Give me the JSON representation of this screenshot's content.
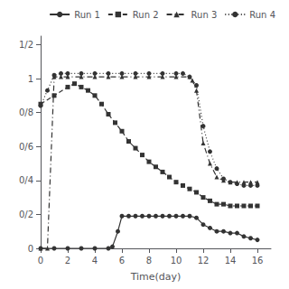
{
  "chart_data": {
    "type": "line",
    "xlabel": "Time(day)",
    "xlim": [
      0,
      17
    ],
    "ylim": [
      0,
      1.25
    ],
    "xticks": [
      0,
      2,
      4,
      6,
      8,
      10,
      12,
      14,
      16
    ],
    "yticks": [
      0,
      {
        "value": 0.2,
        "label": "0/2"
      },
      {
        "value": 0.4,
        "label": "0/4"
      },
      {
        "value": 0.6,
        "label": "0/6"
      },
      {
        "value": 0.8,
        "label": "0/8"
      },
      1,
      {
        "value": 1.2,
        "label": "1/2"
      }
    ],
    "color": "#333333",
    "grid": false,
    "legend": "upper right",
    "series": [
      {
        "name": "Run 1",
        "marker": "circle",
        "line_style": "solid",
        "x": [
          0,
          1,
          2,
          3,
          4,
          5,
          5.3,
          5.7,
          6.0,
          6.5,
          7,
          7.5,
          8,
          8.5,
          9,
          9.5,
          10,
          10.5,
          11,
          11.5,
          12,
          12.5,
          13,
          13.5,
          14,
          14.5,
          15,
          15.5,
          16
        ],
        "values": [
          0.0,
          0.0,
          0.0,
          0.0,
          0.0,
          0.0,
          0.01,
          0.1,
          0.19,
          0.19,
          0.19,
          0.19,
          0.19,
          0.19,
          0.19,
          0.19,
          0.19,
          0.19,
          0.19,
          0.18,
          0.14,
          0.12,
          0.1,
          0.1,
          0.09,
          0.09,
          0.07,
          0.06,
          0.05
        ]
      },
      {
        "name": "Run 2",
        "marker": "square",
        "line_style": "dashed",
        "x": [
          0,
          1,
          2,
          2.5,
          3,
          3.5,
          4,
          4.5,
          5,
          5.5,
          6,
          6.5,
          7,
          7.5,
          8,
          8.5,
          9,
          9.5,
          10,
          10.5,
          11,
          11.5,
          12,
          12.5,
          13,
          13.5,
          14,
          14.5,
          15,
          15.5,
          16
        ],
        "values": [
          0.85,
          0.9,
          0.95,
          0.97,
          0.95,
          0.93,
          0.9,
          0.85,
          0.79,
          0.74,
          0.69,
          0.63,
          0.59,
          0.55,
          0.51,
          0.48,
          0.45,
          0.42,
          0.39,
          0.37,
          0.35,
          0.33,
          0.3,
          0.28,
          0.26,
          0.26,
          0.25,
          0.25,
          0.25,
          0.25,
          0.25
        ]
      },
      {
        "name": "Run 3",
        "marker": "triangle",
        "line_style": "dashdot",
        "x": [
          0,
          0.5,
          1.0,
          1.5,
          2,
          3,
          4,
          5,
          6,
          7,
          8,
          9,
          10,
          11,
          11.2,
          11.5,
          12,
          12.5,
          13,
          13.5,
          14,
          14.5,
          15,
          15.5,
          16
        ],
        "values": [
          0.0,
          0.0,
          1.01,
          1.01,
          1.01,
          1.01,
          1.01,
          1.01,
          1.01,
          1.01,
          1.01,
          1.01,
          1.01,
          1.01,
          0.99,
          0.93,
          0.62,
          0.5,
          0.42,
          0.4,
          0.39,
          0.39,
          0.39,
          0.39,
          0.39
        ]
      },
      {
        "name": "Run 4",
        "marker": "circle",
        "line_style": "dotted",
        "x": [
          0,
          0.5,
          1.0,
          1.5,
          2,
          3,
          4,
          5,
          6,
          7,
          8,
          9,
          10,
          10.5,
          11,
          11.5,
          12,
          12.5,
          13,
          13.5,
          14,
          14.5,
          15,
          15.5,
          16
        ],
        "values": [
          0.84,
          0.93,
          1.02,
          1.03,
          1.03,
          1.03,
          1.03,
          1.03,
          1.03,
          1.03,
          1.03,
          1.03,
          1.03,
          1.03,
          1.01,
          0.96,
          0.72,
          0.57,
          0.47,
          0.41,
          0.39,
          0.38,
          0.37,
          0.37,
          0.37
        ]
      }
    ]
  }
}
